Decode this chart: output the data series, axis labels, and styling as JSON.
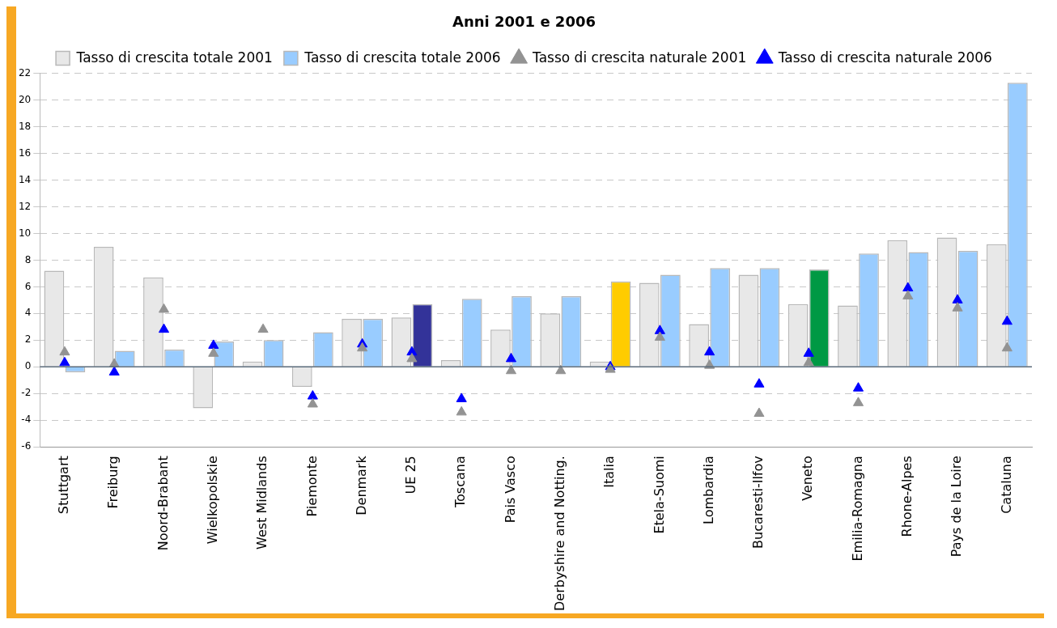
{
  "chart_data": {
    "type": "bar",
    "title": "Anni 2001 e 2006",
    "categories": [
      "Stuttgart",
      "Freiburg",
      "Noord-Brabant",
      "Wielkopolskie",
      "West Midlands",
      "Piemonte",
      "Denmark",
      "UE 25",
      "Toscana",
      "Pais Vasco",
      "Derbyshire and Notting.",
      "Italia",
      "Etela-Suomi",
      "Lombardia",
      "Bucaresti-Ilfov",
      "Veneto",
      "Emilia-Romagna",
      "Rhone-Alpes",
      "Pays de la Loire",
      "Cataluna"
    ],
    "series": [
      {
        "name": "Tasso di crescita totale 2001",
        "color": "#e8e8e8",
        "values": [
          7.2,
          9.0,
          6.7,
          -3.1,
          0.4,
          -1.5,
          3.6,
          3.7,
          0.5,
          2.8,
          4.0,
          0.4,
          6.3,
          3.2,
          6.9,
          4.7,
          4.6,
          9.5,
          9.7,
          9.2
        ]
      },
      {
        "name": "Tasso di crescita totale 2006",
        "color": "#99ccff",
        "colors": [
          "#99ccff",
          "#99ccff",
          "#99ccff",
          "#99ccff",
          "#99ccff",
          "#99ccff",
          "#99ccff",
          "#333399",
          "#99ccff",
          "#99ccff",
          "#99ccff",
          "#ffcc00",
          "#99ccff",
          "#99ccff",
          "#99ccff",
          "#009944",
          "#99ccff",
          "#99ccff",
          "#99ccff",
          "#99ccff"
        ],
        "values": [
          -0.4,
          1.2,
          1.3,
          1.9,
          2.0,
          2.6,
          3.6,
          4.7,
          5.1,
          5.3,
          5.3,
          6.4,
          6.9,
          7.4,
          7.4,
          7.3,
          8.5,
          8.6,
          8.7,
          21.3
        ]
      },
      {
        "name": "Tasso di crescita naturale 2001",
        "type": "scatter",
        "color": "#939393",
        "values": [
          1.1,
          0.2,
          4.3,
          1.0,
          2.8,
          -2.8,
          1.4,
          0.6,
          -3.4,
          -0.3,
          -0.3,
          -0.2,
          2.2,
          0.1,
          -3.5,
          0.3,
          -2.7,
          5.3,
          4.4,
          1.4
        ]
      },
      {
        "name": "Tasso di crescita naturale 2006",
        "type": "scatter",
        "color": "#0000ff",
        "values": [
          0.3,
          -0.4,
          2.8,
          1.6,
          null,
          -2.2,
          1.7,
          1.1,
          -2.4,
          0.6,
          null,
          0.0,
          2.7,
          1.1,
          -1.3,
          1.0,
          -1.6,
          5.9,
          5.0,
          3.4
        ]
      }
    ],
    "ylim": [
      -6,
      22
    ],
    "yticks": [
      -6,
      -4,
      -2,
      0,
      2,
      4,
      6,
      8,
      10,
      12,
      14,
      16,
      18,
      20,
      22
    ],
    "ref_lines": [
      {
        "axis": "y",
        "value": 0,
        "color": "#5a6b7a"
      }
    ],
    "grid": "y",
    "legend": "top",
    "marker": "triangle"
  }
}
